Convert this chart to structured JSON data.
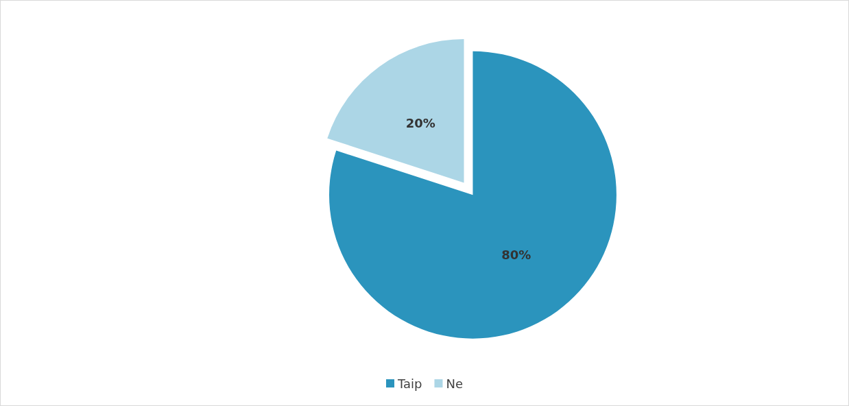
{
  "chart_data": {
    "type": "pie",
    "categories": [
      "Taip",
      "Ne"
    ],
    "values": [
      80,
      20
    ],
    "colors": [
      "#2b94bd",
      "#acd6e6"
    ],
    "value_labels": [
      "80%",
      "20%"
    ],
    "legend": "bottom"
  }
}
